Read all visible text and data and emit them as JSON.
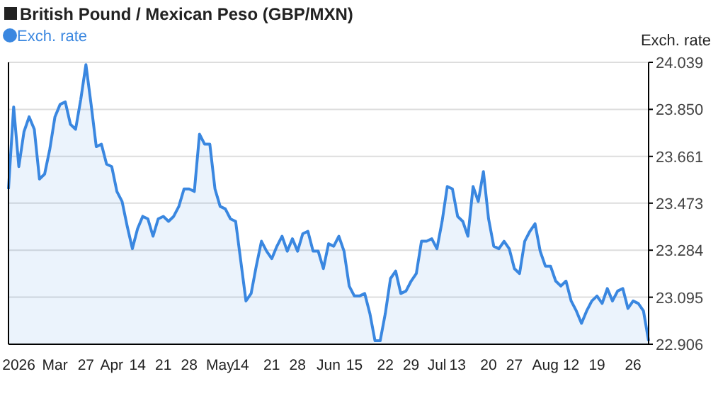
{
  "chart_data": {
    "type": "area",
    "title": "British Pound / Mexican Peso (GBP/MXN)",
    "ylabel": "Exch. rate",
    "categories": [
      null,
      null,
      "2026",
      null,
      null,
      null,
      null,
      null,
      null,
      "Mar",
      null,
      null,
      null,
      null,
      null,
      "27",
      null,
      null,
      null,
      null,
      "Apr",
      null,
      null,
      null,
      null,
      "14",
      null,
      null,
      null,
      null,
      "21",
      null,
      null,
      null,
      null,
      "28",
      null,
      null,
      null,
      null,
      null,
      "May",
      null,
      null,
      null,
      "14",
      null,
      null,
      null,
      null,
      null,
      "21",
      null,
      null,
      null,
      null,
      "28",
      null,
      null,
      null,
      null,
      null,
      "Jun",
      null,
      null,
      null,
      null,
      "15",
      null,
      null,
      null,
      null,
      null,
      "22",
      null,
      null,
      null,
      null,
      "29",
      null,
      null,
      null,
      null,
      "Jul",
      null,
      null,
      null,
      "13",
      null,
      null,
      null,
      null,
      null,
      "20",
      null,
      null,
      null,
      null,
      "27",
      null,
      null,
      null,
      null,
      null,
      "Aug",
      null,
      null,
      null,
      null,
      "12",
      null,
      null,
      null,
      null,
      "19",
      null,
      null,
      null,
      null,
      null,
      null,
      "26",
      null,
      null,
      null
    ],
    "series": [
      {
        "name": "Exch. rate",
        "color": "#3a87e0",
        "values": [
          23.53,
          23.86,
          23.62,
          23.76,
          23.82,
          23.77,
          23.57,
          23.59,
          23.69,
          23.82,
          23.87,
          23.88,
          23.79,
          23.77,
          23.89,
          24.03,
          23.87,
          23.7,
          23.71,
          23.63,
          23.62,
          23.52,
          23.48,
          23.38,
          23.29,
          23.37,
          23.42,
          23.41,
          23.34,
          23.41,
          23.42,
          23.4,
          23.42,
          23.46,
          23.53,
          23.53,
          23.52,
          23.75,
          23.71,
          23.71,
          23.53,
          23.46,
          23.45,
          23.41,
          23.4,
          23.24,
          23.08,
          23.11,
          23.22,
          23.32,
          23.28,
          23.25,
          23.3,
          23.34,
          23.28,
          23.33,
          23.28,
          23.35,
          23.36,
          23.28,
          23.28,
          23.21,
          23.31,
          23.3,
          23.34,
          23.28,
          23.14,
          23.1,
          23.1,
          23.11,
          23.03,
          22.92,
          22.92,
          23.03,
          23.17,
          23.2,
          23.11,
          23.12,
          23.16,
          23.19,
          23.32,
          23.32,
          23.33,
          23.29,
          23.4,
          23.54,
          23.53,
          23.42,
          23.4,
          23.34,
          23.54,
          23.48,
          23.6,
          23.41,
          23.3,
          23.29,
          23.32,
          23.29,
          23.21,
          23.19,
          23.32,
          23.36,
          23.39,
          23.28,
          23.22,
          23.22,
          23.16,
          23.14,
          23.16,
          23.08,
          23.04,
          22.99,
          23.04,
          23.08,
          23.1,
          23.07,
          23.13,
          23.08,
          23.12,
          23.13,
          23.05,
          23.08,
          23.07,
          23.04,
          22.92
        ]
      }
    ],
    "ylim": [
      22.906,
      24.039
    ],
    "yticks": [
      22.906,
      23.095,
      23.284,
      23.473,
      23.661,
      {
        "value": 23.85,
        "label": "23.850"
      },
      24.039
    ],
    "grid": "y",
    "legend": "top left",
    "marker": "none"
  }
}
